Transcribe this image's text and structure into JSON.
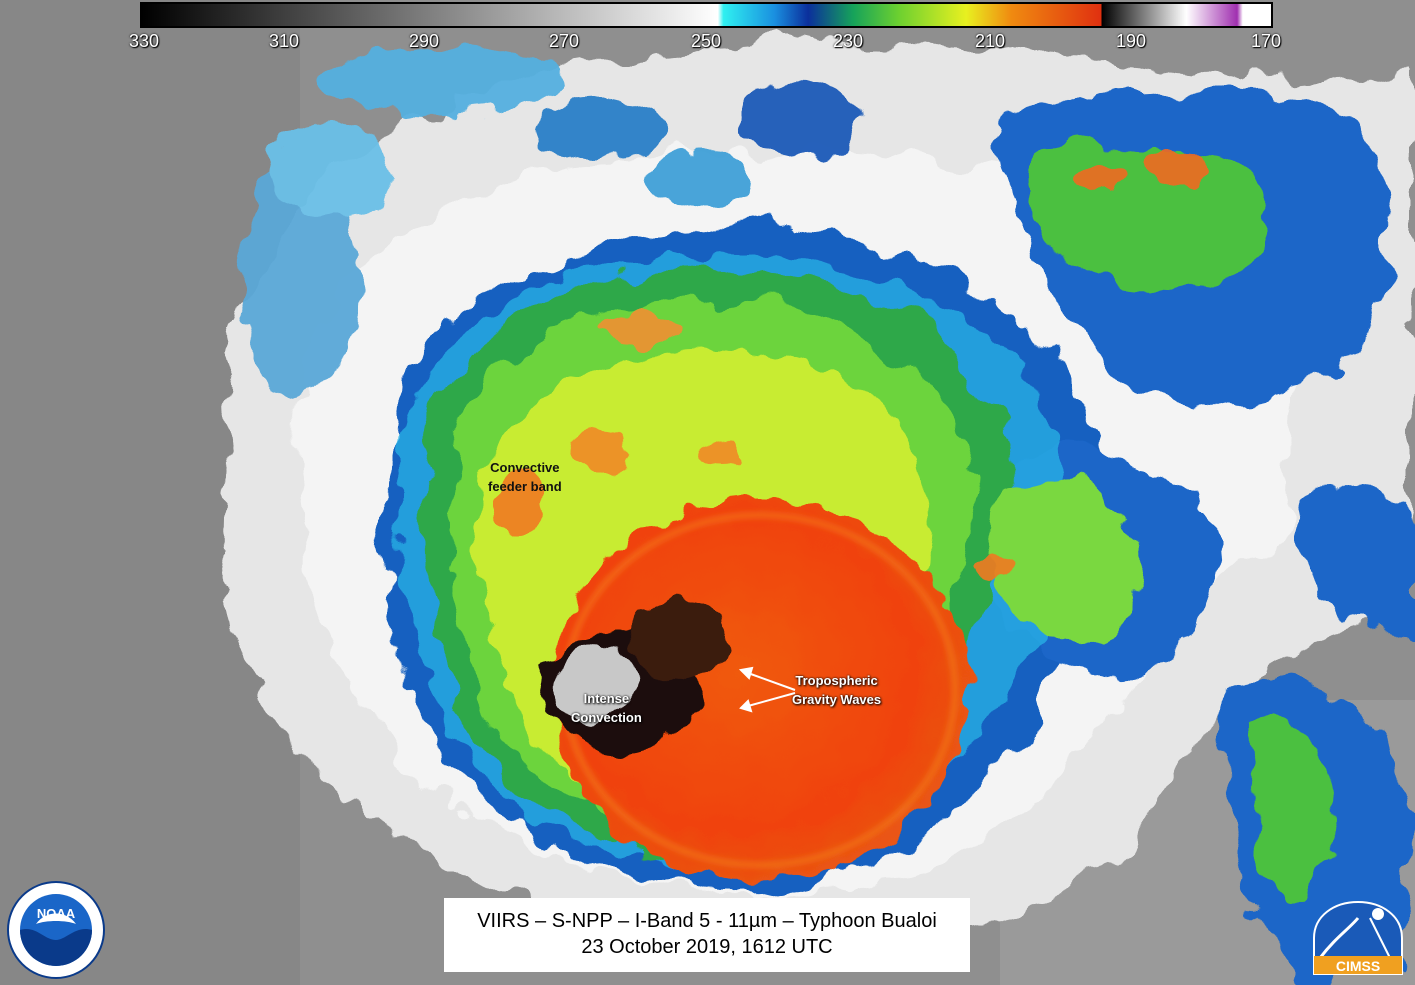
{
  "colorbar": {
    "ticks": [
      "330",
      "310",
      "290",
      "270",
      "250",
      "230",
      "210",
      "190",
      "170"
    ]
  },
  "annotations": {
    "feeder_band_line1": "Convective",
    "feeder_band_line2": "feeder band",
    "gravity_waves_line1": "Tropospheric",
    "gravity_waves_line2": "Gravity Waves",
    "intense_line1": "Intense",
    "intense_line2": "Convection"
  },
  "title": {
    "line1": "VIIRS – S-NPP – I-Band 5 - 11µm – Typhoon Bualoi",
    "line2": "23 October 2019, 1612 UTC"
  },
  "logos": {
    "noaa_text": "NOAA",
    "cimss_text": "CIMSS"
  }
}
